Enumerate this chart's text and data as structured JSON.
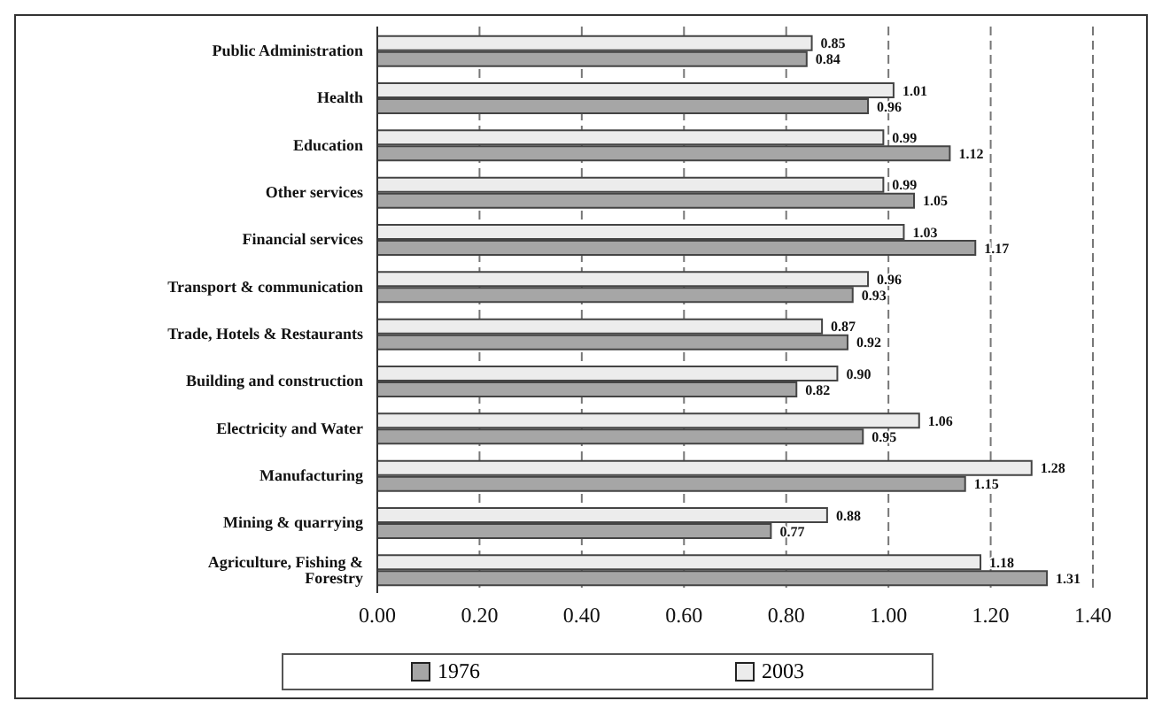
{
  "chart_data": {
    "type": "bar",
    "orientation": "horizontal",
    "categories": [
      "Public Administration",
      "Health",
      "Education",
      "Other services",
      "Financial services",
      "Transport & communication",
      "Trade, Hotels & Restaurants",
      "Building and construction",
      "Electricity and Water",
      "Manufacturing",
      "Mining & quarrying",
      "Agriculture, Fishing & Forestry"
    ],
    "series": [
      {
        "name": "1976",
        "color": "#a6a6a6",
        "values": [
          0.84,
          0.96,
          1.12,
          1.05,
          1.17,
          0.93,
          0.92,
          0.82,
          0.95,
          1.15,
          0.77,
          1.31
        ],
        "value_labels": [
          "0.84",
          "0.96",
          "1.12",
          "1.05",
          "1.17",
          "0.93",
          "0.92",
          "0.82",
          "0.95",
          "1.15",
          "0.77",
          "1.31"
        ]
      },
      {
        "name": "2003",
        "color": "#ececec",
        "values": [
          0.85,
          1.01,
          0.99,
          0.99,
          1.03,
          0.96,
          0.87,
          0.9,
          1.06,
          1.28,
          0.88,
          1.18
        ],
        "value_labels": [
          "0.85",
          "1.01",
          "0.99",
          "0.99",
          "1.03",
          "0.96",
          "0.87",
          "0.90",
          "1.06",
          "1.28",
          "0.88",
          "1.18"
        ]
      }
    ],
    "xlim": [
      0,
      1.4
    ],
    "xticks": [
      "0.00",
      "0.20",
      "0.40",
      "0.60",
      "0.80",
      "1.00",
      "1.20",
      "1.40"
    ],
    "grid": "x",
    "legend": "bottom"
  }
}
